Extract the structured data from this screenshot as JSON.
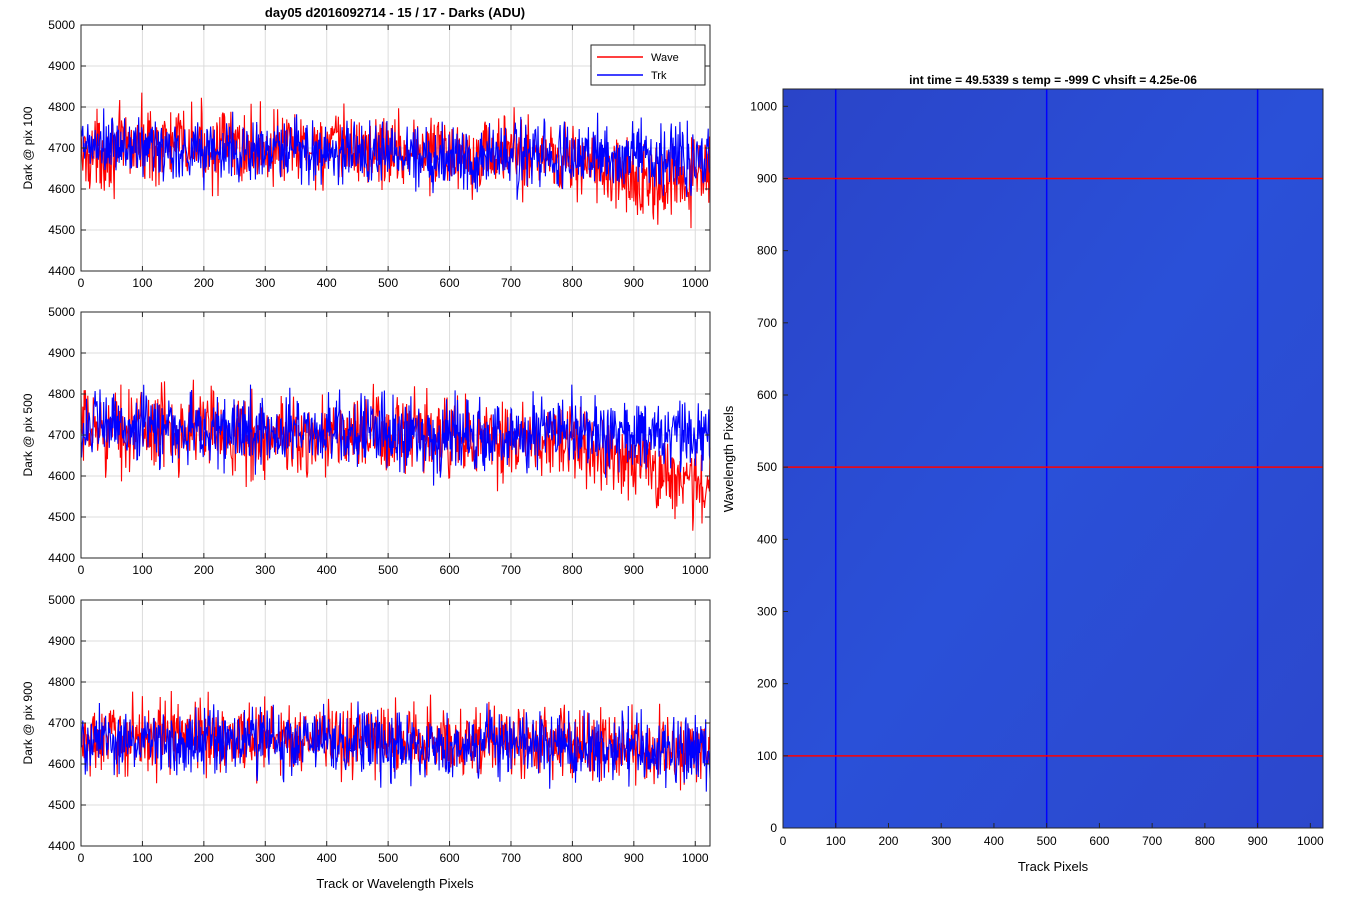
{
  "figure": {
    "title": "day05 d2016092714 - 15 / 17 - Darks (ADU)",
    "xlabel": "Track or Wavelength Pixels"
  },
  "legend": {
    "placement": "top-right",
    "entries": [
      {
        "name": "Wave",
        "color": "#ff0000"
      },
      {
        "name": "Trk",
        "color": "#0000ff"
      }
    ]
  },
  "chart_data": [
    {
      "type": "line",
      "ylabel": "Dark @ pix 100",
      "xlim": [
        0,
        1024
      ],
      "ylim": [
        4400,
        5000
      ],
      "xticks": [
        0,
        100,
        200,
        300,
        400,
        500,
        600,
        700,
        800,
        900,
        1000
      ],
      "yticks": [
        4400,
        4500,
        4600,
        4700,
        4800,
        4900,
        5000
      ],
      "grid": true,
      "series": [
        {
          "name": "Wave",
          "color": "#ff0000",
          "mean": 4690,
          "spread": 80,
          "x": [
            0,
            100,
            200,
            300,
            400,
            500,
            600,
            700,
            800,
            850,
            900,
            950,
            1024
          ],
          "y": [
            4680,
            4710,
            4705,
            4700,
            4700,
            4695,
            4690,
            4690,
            4680,
            4640,
            4620,
            4600,
            4640
          ]
        },
        {
          "name": "Trk",
          "color": "#0000ff",
          "mean": 4690,
          "spread": 70,
          "x": [
            0,
            100,
            200,
            300,
            400,
            500,
            600,
            700,
            800,
            900,
            1024
          ],
          "y": [
            4700,
            4700,
            4695,
            4690,
            4690,
            4690,
            4680,
            4680,
            4680,
            4680,
            4680
          ]
        }
      ]
    },
    {
      "type": "line",
      "ylabel": "Dark @ pix 500",
      "xlim": [
        0,
        1024
      ],
      "ylim": [
        4400,
        5000
      ],
      "xticks": [
        0,
        100,
        200,
        300,
        400,
        500,
        600,
        700,
        800,
        900,
        1000
      ],
      "yticks": [
        4400,
        4500,
        4600,
        4700,
        4800,
        4900,
        5000
      ],
      "grid": true,
      "series": [
        {
          "name": "Wave",
          "color": "#ff0000",
          "mean": 4700,
          "spread": 85,
          "x": [
            0,
            100,
            200,
            300,
            400,
            500,
            600,
            700,
            800,
            850,
            900,
            950,
            1024
          ],
          "y": [
            4710,
            4720,
            4720,
            4690,
            4700,
            4700,
            4690,
            4680,
            4680,
            4660,
            4640,
            4610,
            4560
          ]
        },
        {
          "name": "Trk",
          "color": "#0000ff",
          "mean": 4710,
          "spread": 75,
          "x": [
            0,
            100,
            200,
            300,
            400,
            500,
            600,
            700,
            800,
            900,
            1024
          ],
          "y": [
            4720,
            4720,
            4710,
            4710,
            4710,
            4705,
            4700,
            4700,
            4700,
            4700,
            4690
          ]
        }
      ]
    },
    {
      "type": "line",
      "ylabel": "Dark @ pix 900",
      "xlim": [
        0,
        1024
      ],
      "ylim": [
        4400,
        5000
      ],
      "xticks": [
        0,
        100,
        200,
        300,
        400,
        500,
        600,
        700,
        800,
        900,
        1000
      ],
      "yticks": [
        4400,
        4500,
        4600,
        4700,
        4800,
        4900,
        5000
      ],
      "grid": true,
      "series": [
        {
          "name": "Wave",
          "color": "#ff0000",
          "mean": 4660,
          "spread": 75,
          "x": [
            0,
            100,
            200,
            300,
            400,
            500,
            600,
            700,
            800,
            900,
            1024
          ],
          "y": [
            4650,
            4670,
            4670,
            4665,
            4660,
            4660,
            4655,
            4655,
            4650,
            4640,
            4630
          ]
        },
        {
          "name": "Trk",
          "color": "#0000ff",
          "mean": 4650,
          "spread": 70,
          "x": [
            0,
            100,
            200,
            300,
            400,
            500,
            600,
            700,
            800,
            900,
            1024
          ],
          "y": [
            4650,
            4660,
            4660,
            4655,
            4650,
            4650,
            4645,
            4645,
            4640,
            4640,
            4635
          ]
        }
      ]
    },
    {
      "type": "heatmap",
      "title": "int time = 49.5339 s    temp = -999 C    vhsift = 4.25e-06",
      "xlabel": "Track Pixels",
      "ylabel": "Wavelength Pixels",
      "xlim": [
        0,
        1024
      ],
      "ylim": [
        0,
        1024
      ],
      "xticks": [
        0,
        100,
        200,
        300,
        400,
        500,
        600,
        700,
        800,
        900,
        1000
      ],
      "yticks": [
        0,
        100,
        200,
        300,
        400,
        500,
        600,
        700,
        800,
        900,
        1000
      ],
      "grid": false,
      "colormap_color": "#2648d4",
      "markers": {
        "vertical_track_pixels": [
          100,
          500,
          900
        ],
        "vertical_color": "#0000ff",
        "horizontal_wavelength_pixels": [
          100,
          500,
          900
        ],
        "horizontal_color": "#ff0000"
      }
    }
  ]
}
